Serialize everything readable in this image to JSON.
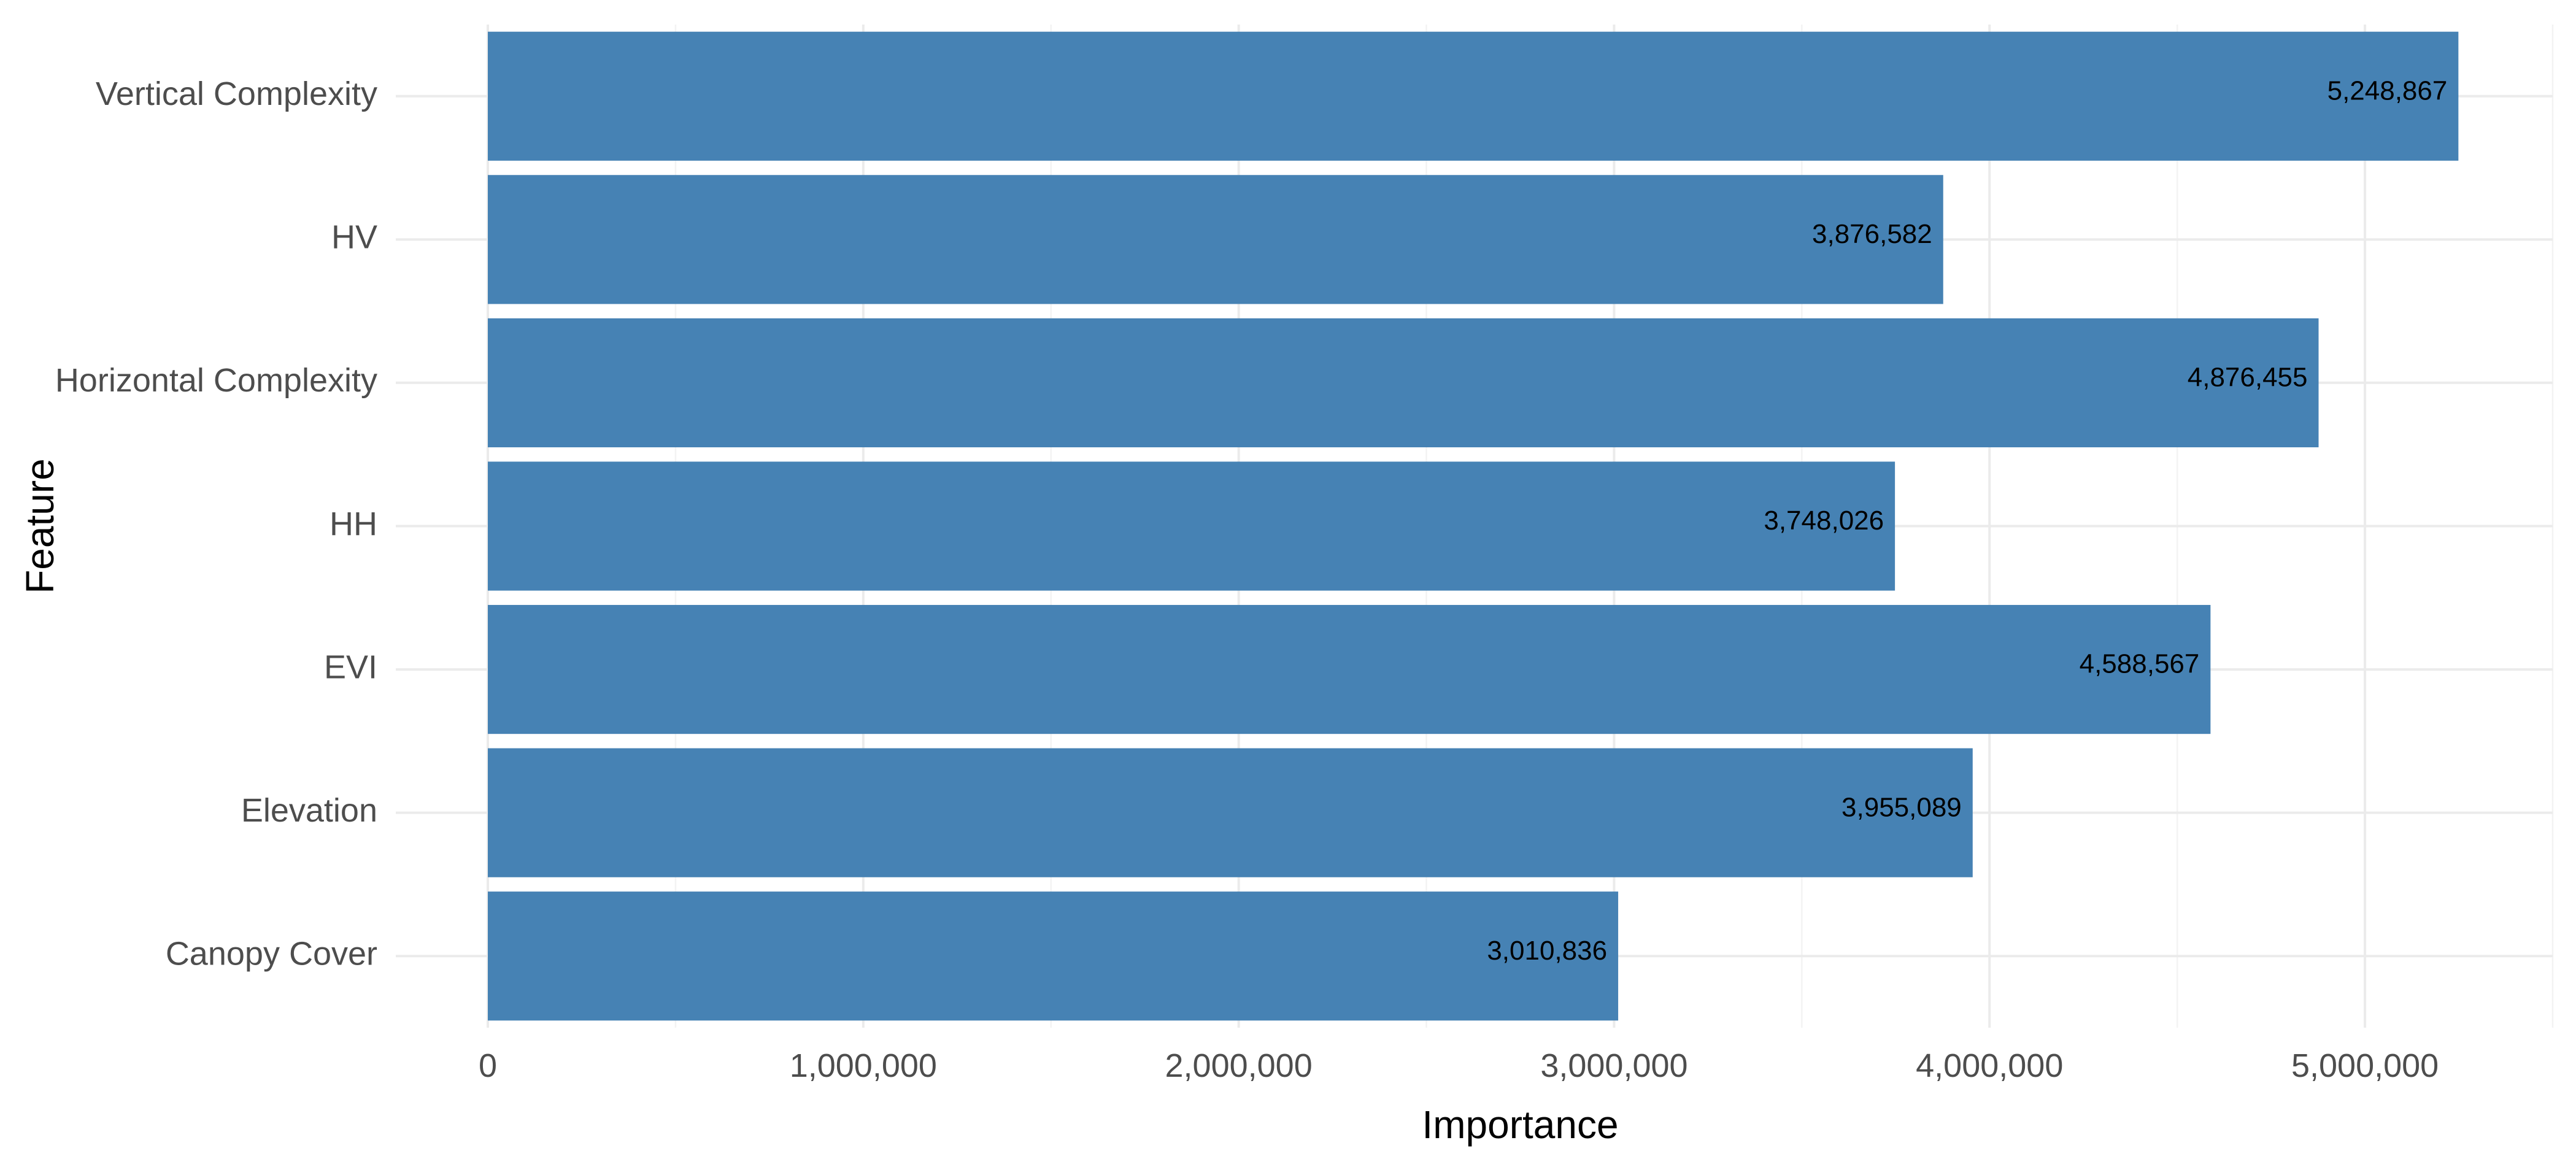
{
  "chart_data": {
    "type": "bar",
    "orientation": "horizontal",
    "categories": [
      "Vertical Complexity",
      "HV",
      "Horizontal Complexity",
      "HH",
      "EVI",
      "Elevation",
      "Canopy Cover"
    ],
    "values": [
      5248867,
      3876582,
      4876455,
      3748026,
      4588567,
      3955089,
      3010836
    ],
    "value_labels": [
      "5,248,867",
      "3,876,582",
      "4,876,455",
      "3,748,026",
      "4,588,567",
      "3,955,089",
      "3,010,836"
    ],
    "xlabel": "Importance",
    "ylabel": "Feature",
    "xlim": [
      0,
      5500000
    ],
    "x_ticks": [
      0,
      1000000,
      2000000,
      3000000,
      4000000,
      5000000
    ],
    "x_tick_labels": [
      "0",
      "1,000,000",
      "2,000,000",
      "3,000,000",
      "4,000,000",
      "5,000,000"
    ],
    "grid": true,
    "legend": "none",
    "bar_color": "#4682b4"
  }
}
